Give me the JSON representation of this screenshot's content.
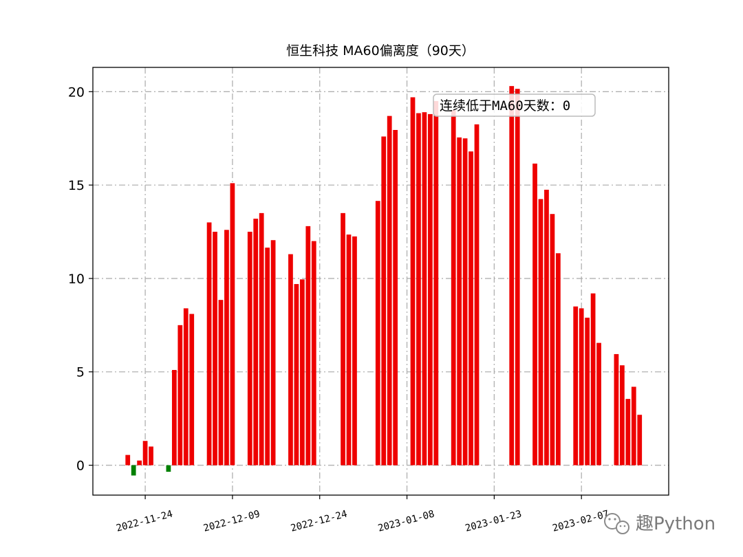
{
  "chart_data": {
    "type": "bar",
    "title": "恒生科技 MA60偏离度（90天）",
    "xlabel": "",
    "ylabel": "",
    "ylim": [
      -1.6,
      21.3
    ],
    "yticks": [
      0,
      5,
      10,
      15,
      20
    ],
    "xticks": [
      "2022-11-24",
      "2022-12-09",
      "2022-12-24",
      "2023-01-08",
      "2023-01-23",
      "2023-02-07"
    ],
    "xtick_labels": [
      "2022-11-24",
      "2022-12-09",
      "2022-12-24",
      "2023-01-08",
      "2023-01-23",
      "2023-02-07"
    ],
    "xlim": [
      "2022-11-15",
      "2023-02-22"
    ],
    "grid": true,
    "grid_style": "dashdot",
    "positive_color": "#ee0000",
    "negative_color": "#008000",
    "x": [
      "2022-11-21",
      "2022-11-22",
      "2022-11-23",
      "2022-11-24",
      "2022-11-25",
      "2022-11-28",
      "2022-11-29",
      "2022-11-30",
      "2022-12-01",
      "2022-12-02",
      "2022-12-05",
      "2022-12-06",
      "2022-12-07",
      "2022-12-08",
      "2022-12-09",
      "2022-12-12",
      "2022-12-13",
      "2022-12-14",
      "2022-12-15",
      "2022-12-16",
      "2022-12-19",
      "2022-12-20",
      "2022-12-21",
      "2022-12-22",
      "2022-12-23",
      "2022-12-28",
      "2022-12-29",
      "2022-12-30",
      "2023-01-03",
      "2023-01-04",
      "2023-01-05",
      "2023-01-06",
      "2023-01-09",
      "2023-01-10",
      "2023-01-11",
      "2023-01-12",
      "2023-01-13",
      "2023-01-16",
      "2023-01-17",
      "2023-01-18",
      "2023-01-19",
      "2023-01-20",
      "2023-01-26",
      "2023-01-27",
      "2023-01-30",
      "2023-01-31",
      "2023-02-01",
      "2023-02-02",
      "2023-02-03",
      "2023-02-06",
      "2023-02-07",
      "2023-02-08",
      "2023-02-09",
      "2023-02-10",
      "2023-02-13",
      "2023-02-14",
      "2023-02-15",
      "2023-02-16",
      "2023-02-17"
    ],
    "values": [
      0.55,
      -0.55,
      0.25,
      1.3,
      1.0,
      -0.35,
      5.1,
      7.5,
      8.4,
      8.1,
      13.0,
      12.5,
      8.85,
      12.6,
      15.1,
      12.5,
      13.2,
      13.5,
      11.65,
      12.05,
      11.3,
      9.7,
      9.95,
      12.8,
      12.0,
      13.5,
      12.35,
      12.25,
      14.15,
      17.6,
      18.7,
      17.95,
      19.7,
      18.85,
      18.9,
      18.8,
      19.5,
      19.0,
      17.55,
      17.5,
      16.8,
      18.25,
      20.3,
      20.15,
      16.15,
      14.25,
      14.75,
      13.45,
      11.35,
      8.5,
      8.4,
      7.9,
      9.2,
      6.55,
      5.95,
      5.35,
      3.55,
      4.2,
      2.7
    ]
  },
  "annotation": {
    "text": "连续低于MA60天数：0",
    "color": "#008000"
  },
  "watermark": {
    "icon": "wechat-icon",
    "text": "趣Python"
  }
}
